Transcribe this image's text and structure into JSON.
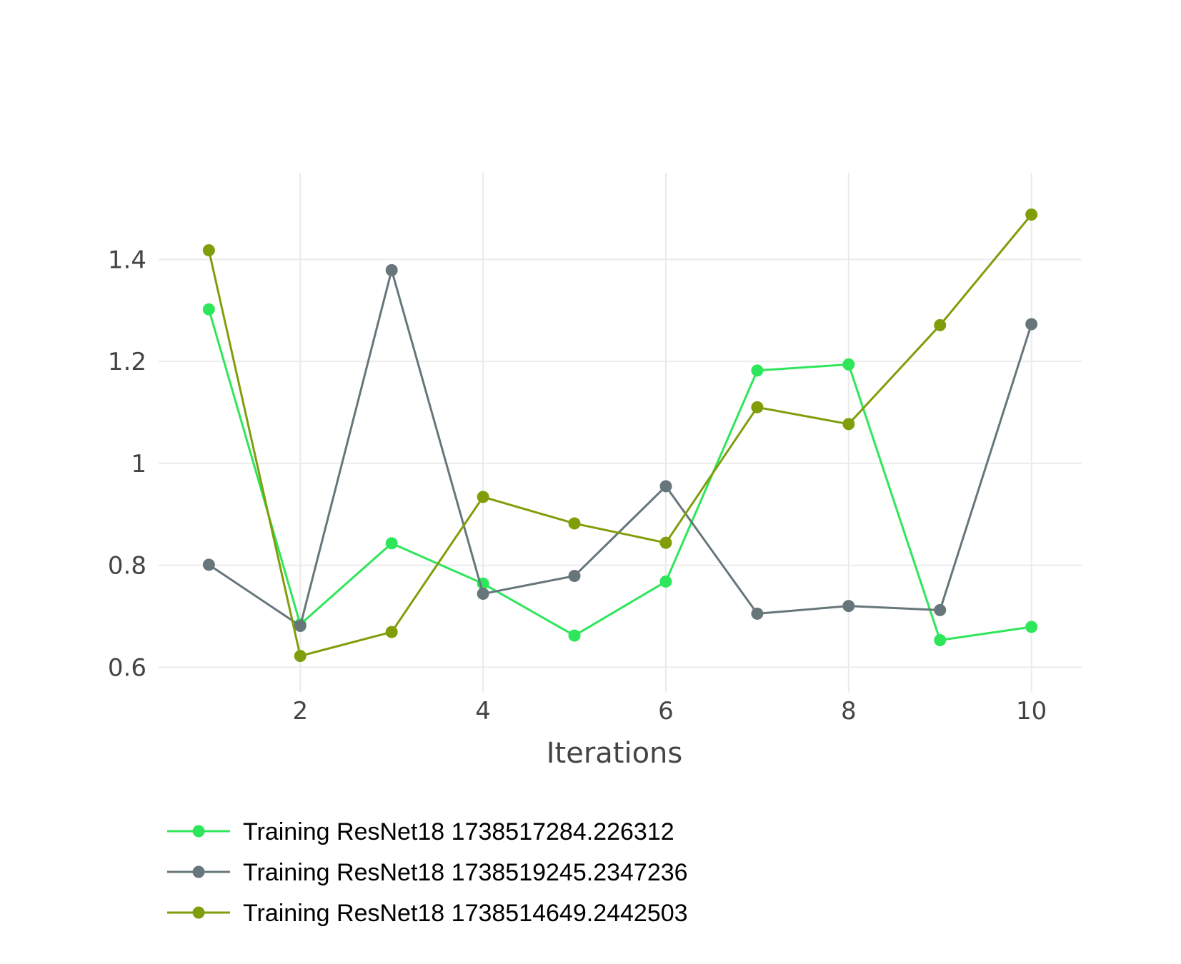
{
  "chart_data": {
    "type": "line",
    "title": "",
    "xlabel": "Iterations",
    "ylabel": "",
    "x": [
      1,
      2,
      3,
      4,
      5,
      6,
      7,
      8,
      9,
      10
    ],
    "xlim": [
      0.45,
      10.55
    ],
    "ylim": [
      0.55,
      1.57
    ],
    "x_ticks": [
      2,
      4,
      6,
      8,
      10
    ],
    "y_ticks": [
      0.6,
      0.8,
      1.0,
      1.2,
      1.4
    ],
    "x_tick_labels": [
      "2",
      "4",
      "6",
      "8",
      "10"
    ],
    "y_tick_labels": [
      "0.6",
      "0.8",
      "1",
      "1.2",
      "1.4"
    ],
    "grid": true,
    "legend_position": "bottom-left",
    "series": [
      {
        "name": "Training ResNet18 1738517284.226312",
        "color": "#2ee65a",
        "values": [
          1.302,
          0.684,
          0.843,
          0.764,
          0.662,
          0.768,
          1.182,
          1.194,
          0.653,
          0.679
        ]
      },
      {
        "name": "Training ResNet18 1738519245.2347236",
        "color": "#66767b",
        "values": [
          0.801,
          0.681,
          1.379,
          0.744,
          0.779,
          0.955,
          0.705,
          0.72,
          0.712,
          1.273
        ]
      },
      {
        "name": "Training ResNet18 1738514649.2442503",
        "color": "#7f9e0a",
        "values": [
          1.418,
          0.622,
          0.669,
          0.934,
          0.882,
          0.844,
          1.11,
          1.077,
          1.271,
          1.488
        ]
      }
    ]
  }
}
